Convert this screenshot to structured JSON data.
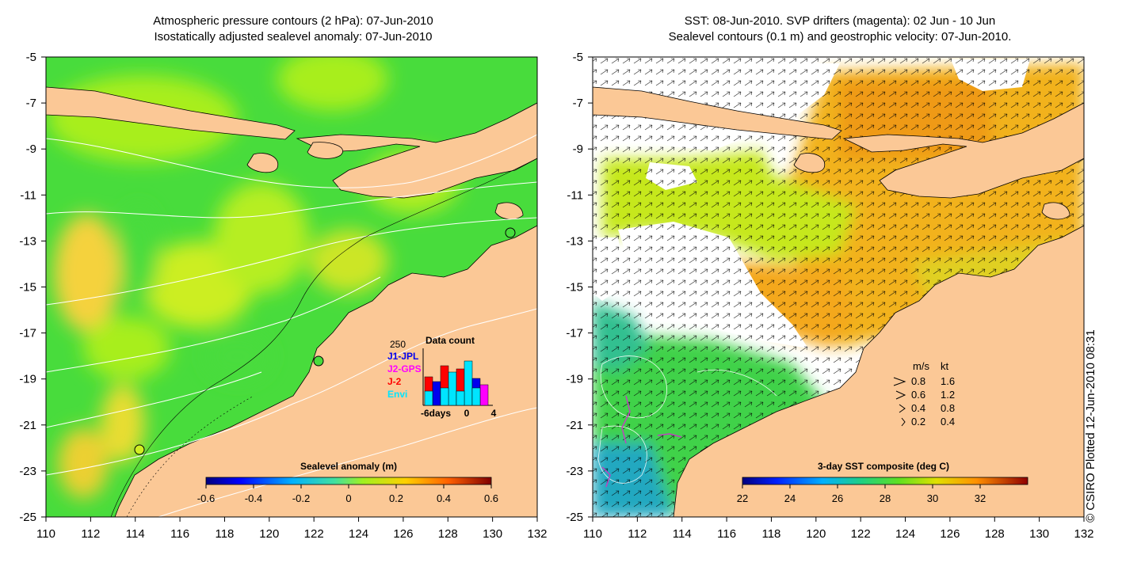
{
  "left_panel": {
    "title_line1": "Atmospheric pressure contours (2 hPa): 07-Jun-2010",
    "title_line2": "Isostatically adjusted sealevel anomaly: 07-Jun-2010",
    "colorbar_title": "Sealevel anomaly (m)",
    "colorbar_ticks": [
      "-0.6",
      "-0.4",
      "-0.2",
      "0",
      "0.2",
      "0.4",
      "0.6"
    ],
    "inset": {
      "title": "Data count",
      "ymax_label": "250",
      "x_labels": [
        "-6days",
        "0",
        "4"
      ],
      "missions": [
        {
          "name": "J1-JPL",
          "color": "#0000ee"
        },
        {
          "name": "J2-GPS",
          "color": "#ff00ff"
        },
        {
          "name": "J-2",
          "color": "#ff0000"
        },
        {
          "name": "Envi",
          "color": "#00e5ff"
        }
      ]
    }
  },
  "right_panel": {
    "title_line1": "SST: 08-Jun-2010. SVP drifters (magenta): 02 Jun - 10 Jun",
    "title_line2": "Sealevel contours (0.1 m) and geostrophic velocity: 07-Jun-2010.",
    "colorbar_title": "3-day SST composite (deg C)",
    "colorbar_ticks": [
      "22",
      "24",
      "26",
      "28",
      "30",
      "32"
    ],
    "velocity_legend": {
      "header_ms": "m/s",
      "header_kt": "kt",
      "rows": [
        {
          "ms": "0.8",
          "kt": "1.6"
        },
        {
          "ms": "0.6",
          "kt": "1.2"
        },
        {
          "ms": "0.4",
          "kt": "0.8"
        },
        {
          "ms": "0.2",
          "kt": "0.4"
        }
      ]
    }
  },
  "axes": {
    "x_ticks": [
      "110",
      "112",
      "114",
      "116",
      "118",
      "120",
      "122",
      "124",
      "126",
      "128",
      "130",
      "132"
    ],
    "y_ticks": [
      "-5",
      "-7",
      "-9",
      "-11",
      "-13",
      "-15",
      "-17",
      "-19",
      "-21",
      "-23",
      "-25"
    ]
  },
  "credit": "© CSIRO Plotted 12-Jun-2010 08:31",
  "colors": {
    "land": "#fbc896",
    "ocean_green": "#44dd44",
    "sst_orange": "#f2b21e",
    "missing": "#ffffff"
  }
}
